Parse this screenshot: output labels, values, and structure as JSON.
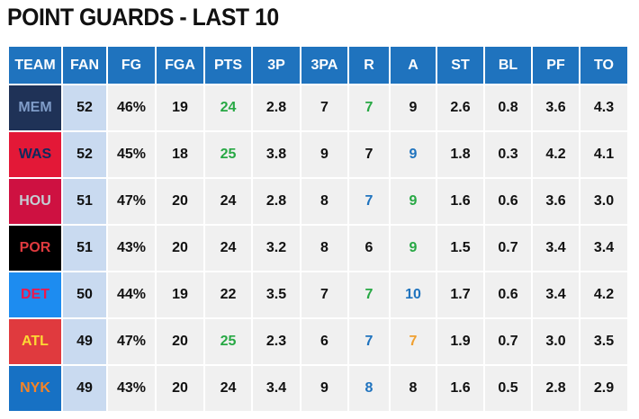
{
  "title": "POINT GUARDS - LAST 10",
  "table": {
    "header": [
      "TEAM",
      "FAN",
      "FG",
      "FGA",
      "PTS",
      "3P",
      "3PA",
      "R",
      "A",
      "ST",
      "BL",
      "PF",
      "TO"
    ],
    "rows": [
      [
        "MEM",
        "52",
        "46%",
        "19",
        "24",
        "2.8",
        "7",
        "7",
        "9",
        "2.6",
        "0.8",
        "3.6",
        "4.3"
      ],
      [
        "WAS",
        "52",
        "45%",
        "18",
        "25",
        "3.8",
        "9",
        "7",
        "9",
        "1.8",
        "0.3",
        "4.2",
        "4.1"
      ],
      [
        "HOU",
        "51",
        "47%",
        "20",
        "24",
        "2.8",
        "8",
        "7",
        "9",
        "1.6",
        "0.6",
        "3.6",
        "3.0"
      ],
      [
        "POR",
        "51",
        "43%",
        "20",
        "24",
        "3.2",
        "8",
        "6",
        "9",
        "1.5",
        "0.7",
        "3.4",
        "3.4"
      ],
      [
        "DET",
        "50",
        "44%",
        "19",
        "22",
        "3.5",
        "7",
        "7",
        "10",
        "1.7",
        "0.6",
        "3.4",
        "4.2"
      ],
      [
        "ATL",
        "49",
        "47%",
        "20",
        "25",
        "2.3",
        "6",
        "7",
        "7",
        "1.9",
        "0.7",
        "3.0",
        "3.5"
      ],
      [
        "NYK",
        "49",
        "43%",
        "20",
        "24",
        "3.4",
        "9",
        "8",
        "8",
        "1.6",
        "0.5",
        "2.8",
        "2.9"
      ]
    ],
    "team_colors": [
      {
        "bg": "#1f3257",
        "fg": "#7f9cc8"
      },
      {
        "bg": "#e31837",
        "fg": "#0c2a5e"
      },
      {
        "bg": "#ce1141",
        "fg": "#c4ced4"
      },
      {
        "bg": "#000000",
        "fg": "#e03a3e"
      },
      {
        "bg": "#1d8cf0",
        "fg": "#ed174c"
      },
      {
        "bg": "#e03a3e",
        "fg": "#fdd835"
      },
      {
        "bg": "#1771c4",
        "fg": "#f58426"
      }
    ],
    "value_colors": [
      [
        null,
        null,
        null,
        null,
        "#27a844",
        null,
        null,
        "#27a844",
        null,
        null,
        null,
        null,
        null
      ],
      [
        null,
        null,
        null,
        null,
        "#27a844",
        null,
        null,
        null,
        "#1f73be",
        null,
        null,
        null,
        null
      ],
      [
        null,
        null,
        null,
        null,
        null,
        null,
        null,
        "#1f73be",
        "#27a844",
        null,
        null,
        null,
        null
      ],
      [
        null,
        null,
        null,
        null,
        null,
        null,
        null,
        null,
        "#27a844",
        null,
        null,
        null,
        null
      ],
      [
        null,
        null,
        null,
        null,
        null,
        null,
        null,
        "#27a844",
        "#1f73be",
        null,
        null,
        null,
        null
      ],
      [
        null,
        null,
        null,
        null,
        "#27a844",
        null,
        null,
        "#1f73be",
        "#f0a030",
        null,
        null,
        null,
        null
      ],
      [
        null,
        null,
        null,
        null,
        null,
        null,
        null,
        "#1f73be",
        null,
        null,
        null,
        null,
        null
      ]
    ]
  }
}
